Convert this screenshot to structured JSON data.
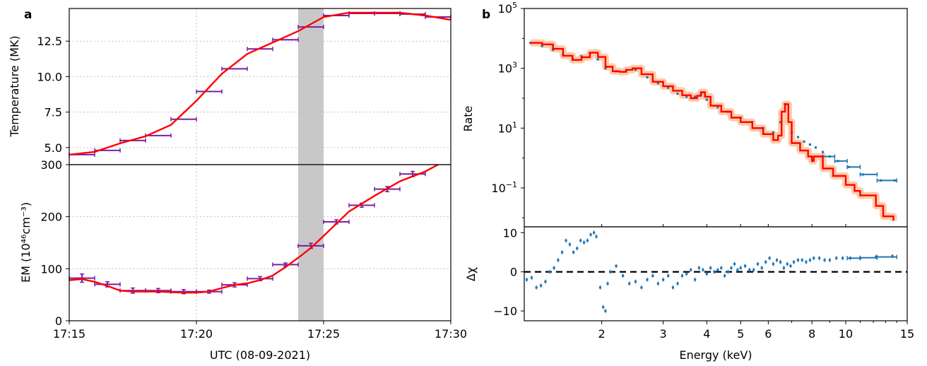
{
  "chart_data": [
    {
      "panel_label": "a",
      "type": "line",
      "subplot": "temperature",
      "ylabel": "Temperature (MK)",
      "xlim": [
        "17:15",
        "17:30"
      ],
      "ylim": [
        3.8,
        14.8
      ],
      "yticks": [
        5.0,
        7.5,
        10.0,
        12.5
      ],
      "ytick_labels": [
        "5.0",
        "7.5",
        "10.0",
        "12.5"
      ],
      "shaded_interval": [
        "17:24",
        "17:25"
      ],
      "grid": "dotted",
      "colors": {
        "model": "#ff0000",
        "points": "#7b1fa2",
        "shade": "#c8c8c8"
      },
      "curve": {
        "x": [
          "17:15",
          "17:16",
          "17:17",
          "17:18",
          "17:19",
          "17:20",
          "17:21",
          "17:22",
          "17:23",
          "17:24",
          "17:25",
          "17:26",
          "17:27",
          "17:28",
          "17:29",
          "17:30"
        ],
        "y": [
          4.5,
          4.7,
          5.3,
          5.8,
          6.6,
          8.3,
          10.2,
          11.6,
          12.4,
          13.2,
          14.2,
          14.5,
          14.5,
          14.5,
          14.3,
          14.0
        ]
      },
      "points": [
        {
          "x": 15.5,
          "y": 4.5,
          "xerr": 0.5
        },
        {
          "x": 16.5,
          "y": 4.8,
          "xerr": 0.5
        },
        {
          "x": 17.5,
          "y": 5.5,
          "xerr": 0.5
        },
        {
          "x": 18.5,
          "y": 5.85,
          "xerr": 0.5
        },
        {
          "x": 19.5,
          "y": 7.0,
          "xerr": 0.5
        },
        {
          "x": 20.5,
          "y": 8.95,
          "xerr": 0.5
        },
        {
          "x": 21.5,
          "y": 10.55,
          "xerr": 0.5
        },
        {
          "x": 22.5,
          "y": 11.95,
          "xerr": 0.5
        },
        {
          "x": 23.5,
          "y": 12.6,
          "xerr": 0.5
        },
        {
          "x": 24.5,
          "y": 13.5,
          "xerr": 0.5
        },
        {
          "x": 25.5,
          "y": 14.3,
          "xerr": 0.5
        },
        {
          "x": 26.5,
          "y": 14.45,
          "xerr": 0.5
        },
        {
          "x": 27.5,
          "y": 14.45,
          "xerr": 0.5
        },
        {
          "x": 28.5,
          "y": 14.4,
          "xerr": 0.5
        },
        {
          "x": 29.5,
          "y": 14.2,
          "xerr": 0.5
        }
      ]
    },
    {
      "type": "line",
      "subplot": "emission_measure",
      "ylabel": "EM (10⁴⁶cm⁻³)",
      "xlabel": "UTC (08-09-2021)",
      "xticks": [
        "17:15",
        "17:20",
        "17:25",
        "17:30"
      ],
      "ylim": [
        0,
        300
      ],
      "yticks": [
        0,
        100,
        200,
        300
      ],
      "ytick_labels": [
        "0",
        "100",
        "200",
        "300"
      ],
      "shaded_interval": [
        "17:24",
        "17:25"
      ],
      "grid": "dotted",
      "colors": {
        "model": "#ff0000",
        "points": "#7b1fa2",
        "shade": "#c8c8c8"
      },
      "curve": {
        "x": [
          15,
          15.5,
          16,
          16.5,
          17,
          17.5,
          18,
          18.5,
          19,
          19.5,
          20,
          20.5,
          21,
          21.5,
          22,
          22.5,
          23,
          23.5,
          24,
          24.5,
          25,
          26,
          27,
          28,
          29,
          29.5
        ],
        "y": [
          78,
          80,
          75,
          67,
          58,
          56,
          56,
          56,
          55,
          54,
          54,
          56,
          63,
          69,
          72,
          78,
          87,
          103,
          121,
          140,
          163,
          210,
          240,
          268,
          287,
          300
        ]
      },
      "points": [
        {
          "x": 15.5,
          "y": 82,
          "xerr": 0.5,
          "yerr": 8
        },
        {
          "x": 16.5,
          "y": 70,
          "xerr": 0.5,
          "yerr": 5
        },
        {
          "x": 17.5,
          "y": 58,
          "xerr": 0.5,
          "yerr": 5
        },
        {
          "x": 18.5,
          "y": 58,
          "xerr": 0.5,
          "yerr": 4
        },
        {
          "x": 19.5,
          "y": 56,
          "xerr": 0.5,
          "yerr": 4
        },
        {
          "x": 20.5,
          "y": 56,
          "xerr": 0.5,
          "yerr": 3
        },
        {
          "x": 21.5,
          "y": 69,
          "xerr": 0.5,
          "yerr": 4
        },
        {
          "x": 22.5,
          "y": 81,
          "xerr": 0.5,
          "yerr": 4
        },
        {
          "x": 23.5,
          "y": 108,
          "xerr": 0.5,
          "yerr": 3
        },
        {
          "x": 24.5,
          "y": 144,
          "xerr": 0.5,
          "yerr": 5
        },
        {
          "x": 25.5,
          "y": 190,
          "xerr": 0.5,
          "yerr": 4
        },
        {
          "x": 26.5,
          "y": 222,
          "xerr": 0.5,
          "yerr": 4
        },
        {
          "x": 27.5,
          "y": 253,
          "xerr": 0.5,
          "yerr": 5
        },
        {
          "x": 28.5,
          "y": 282,
          "xerr": 0.5,
          "yerr": 5
        }
      ]
    },
    {
      "panel_label": "b",
      "type": "line",
      "subplot": "spectrum",
      "ylabel": "Rate",
      "scale": {
        "x": "log",
        "y": "log"
      },
      "xlim": [
        1.2,
        15
      ],
      "ylim_exponent": [
        -2.3,
        5
      ],
      "ytick_exponents": [
        -1,
        1,
        3,
        5
      ],
      "colors": {
        "model": "#ff0000",
        "band": "#ffa060",
        "data": "#1f77b4"
      },
      "model": {
        "x": [
          1.25,
          1.35,
          1.45,
          1.55,
          1.65,
          1.75,
          1.85,
          1.95,
          2.05,
          2.15,
          2.25,
          2.35,
          2.45,
          2.6,
          2.8,
          3.0,
          3.2,
          3.4,
          3.6,
          3.75,
          3.85,
          3.95,
          4.1,
          4.4,
          4.7,
          5.0,
          5.4,
          5.8,
          6.2,
          6.4,
          6.55,
          6.7,
          6.85,
          7.0,
          7.4,
          7.8,
          8.0,
          8.1,
          8.6,
          9.2,
          10.0,
          10.6,
          11.0,
          12.2,
          12.8,
          13.7
        ],
        "y_exp": [
          3.85,
          3.8,
          3.65,
          3.42,
          3.28,
          3.37,
          3.52,
          3.38,
          3.05,
          2.9,
          2.88,
          2.95,
          3.0,
          2.8,
          2.55,
          2.4,
          2.25,
          2.1,
          2.0,
          2.08,
          2.2,
          2.05,
          1.75,
          1.55,
          1.35,
          1.2,
          1.0,
          0.8,
          0.6,
          0.75,
          1.55,
          1.8,
          1.2,
          0.5,
          0.25,
          0.05,
          -0.1,
          0.05,
          -0.35,
          -0.6,
          -0.9,
          -1.1,
          -1.25,
          -1.6,
          -1.95,
          -2.1
        ]
      },
      "data": {
        "x": [
          1.25,
          1.35,
          1.45,
          1.55,
          1.65,
          1.75,
          1.85,
          1.95,
          2.05,
          2.2,
          2.35,
          2.5,
          2.7,
          2.9,
          3.1,
          3.3,
          3.5,
          3.7,
          3.85,
          4.0,
          4.3,
          4.6,
          5.0,
          5.4,
          5.8,
          6.2,
          6.5,
          6.7,
          7.0,
          7.3,
          7.6,
          7.9,
          8.2,
          8.6,
          9.0,
          9.5,
          10.2,
          11.2,
          12.6,
          13.8
        ],
        "y_exp": [
          3.85,
          3.75,
          3.62,
          3.45,
          3.32,
          3.4,
          3.5,
          3.3,
          3.0,
          2.9,
          2.92,
          2.95,
          2.7,
          2.5,
          2.35,
          2.15,
          2.05,
          2.05,
          2.15,
          1.95,
          1.7,
          1.55,
          1.35,
          1.2,
          1.0,
          0.85,
          1.2,
          1.8,
          0.85,
          0.7,
          0.55,
          0.45,
          0.35,
          0.2,
          0.05,
          -0.1,
          -0.3,
          -0.55,
          -0.75,
          -0.75
        ]
      },
      "xerr_bins": [
        [
          12.3,
          14.0
        ],
        [
          11.0,
          12.3
        ],
        [
          10.1,
          11.0
        ],
        [
          9.3,
          10.1
        ],
        [
          8.6,
          9.3
        ]
      ]
    },
    {
      "type": "scatter",
      "subplot": "residuals",
      "xlabel": "Energy (keV)",
      "ylabel": "Δχ",
      "scale": {
        "x": "log",
        "y": "linear"
      },
      "xlim": [
        1.2,
        15
      ],
      "ylim": [
        -12.5,
        11.5
      ],
      "yticks": [
        -10,
        0,
        10
      ],
      "ytick_labels": [
        "−10",
        "0",
        "10"
      ],
      "xticks": [
        2,
        3,
        4,
        5,
        6,
        8,
        10,
        15
      ],
      "xtick_labels": [
        "2",
        "3",
        "4",
        "5",
        "6",
        "8",
        "10",
        "15"
      ],
      "reference_line_y": 0,
      "colors": {
        "data": "#1f77b4",
        "line": "#000000"
      },
      "residuals": {
        "x": [
          1.22,
          1.26,
          1.3,
          1.34,
          1.38,
          1.42,
          1.46,
          1.5,
          1.54,
          1.58,
          1.62,
          1.66,
          1.7,
          1.74,
          1.78,
          1.82,
          1.86,
          1.9,
          1.93,
          1.98,
          2.02,
          2.05,
          2.08,
          2.12,
          2.2,
          2.3,
          2.4,
          2.5,
          2.6,
          2.7,
          2.8,
          2.9,
          3.0,
          3.1,
          3.2,
          3.3,
          3.4,
          3.5,
          3.6,
          3.7,
          3.8,
          3.9,
          4.0,
          4.1,
          4.2,
          4.3,
          4.4,
          4.5,
          4.6,
          4.7,
          4.8,
          4.9,
          5.0,
          5.15,
          5.3,
          5.45,
          5.6,
          5.75,
          5.9,
          6.05,
          6.2,
          6.35,
          6.5,
          6.65,
          6.8,
          6.95,
          7.1,
          7.3,
          7.5,
          7.7,
          7.9,
          8.1,
          8.4,
          8.7,
          9.0,
          9.4,
          9.8,
          10.3,
          11.0,
          12.2,
          13.6
        ],
        "y": [
          -2,
          -1.5,
          -4,
          -3.5,
          -2.5,
          0,
          1,
          3,
          5,
          8,
          7,
          5,
          6,
          8,
          7.5,
          8,
          9.5,
          10,
          9,
          -4,
          -9,
          -10,
          -3,
          0,
          1.5,
          -1,
          -3,
          -2.5,
          -4,
          -2,
          -1,
          -3,
          -2,
          -1,
          -4,
          -3,
          -1,
          -0.5,
          0.5,
          -2,
          1,
          0.5,
          -0.5,
          1,
          0,
          0.5,
          1,
          -1,
          0,
          1,
          2,
          0.5,
          1,
          1.5,
          0.5,
          0.5,
          2,
          1,
          2.5,
          3.5,
          2,
          3,
          2.5,
          1,
          2,
          1.5,
          2.5,
          3,
          3,
          2.5,
          3,
          3.5,
          3.5,
          3,
          3,
          3.5,
          3.5,
          3.5,
          3.5,
          3.8,
          4
        ]
      }
    }
  ]
}
